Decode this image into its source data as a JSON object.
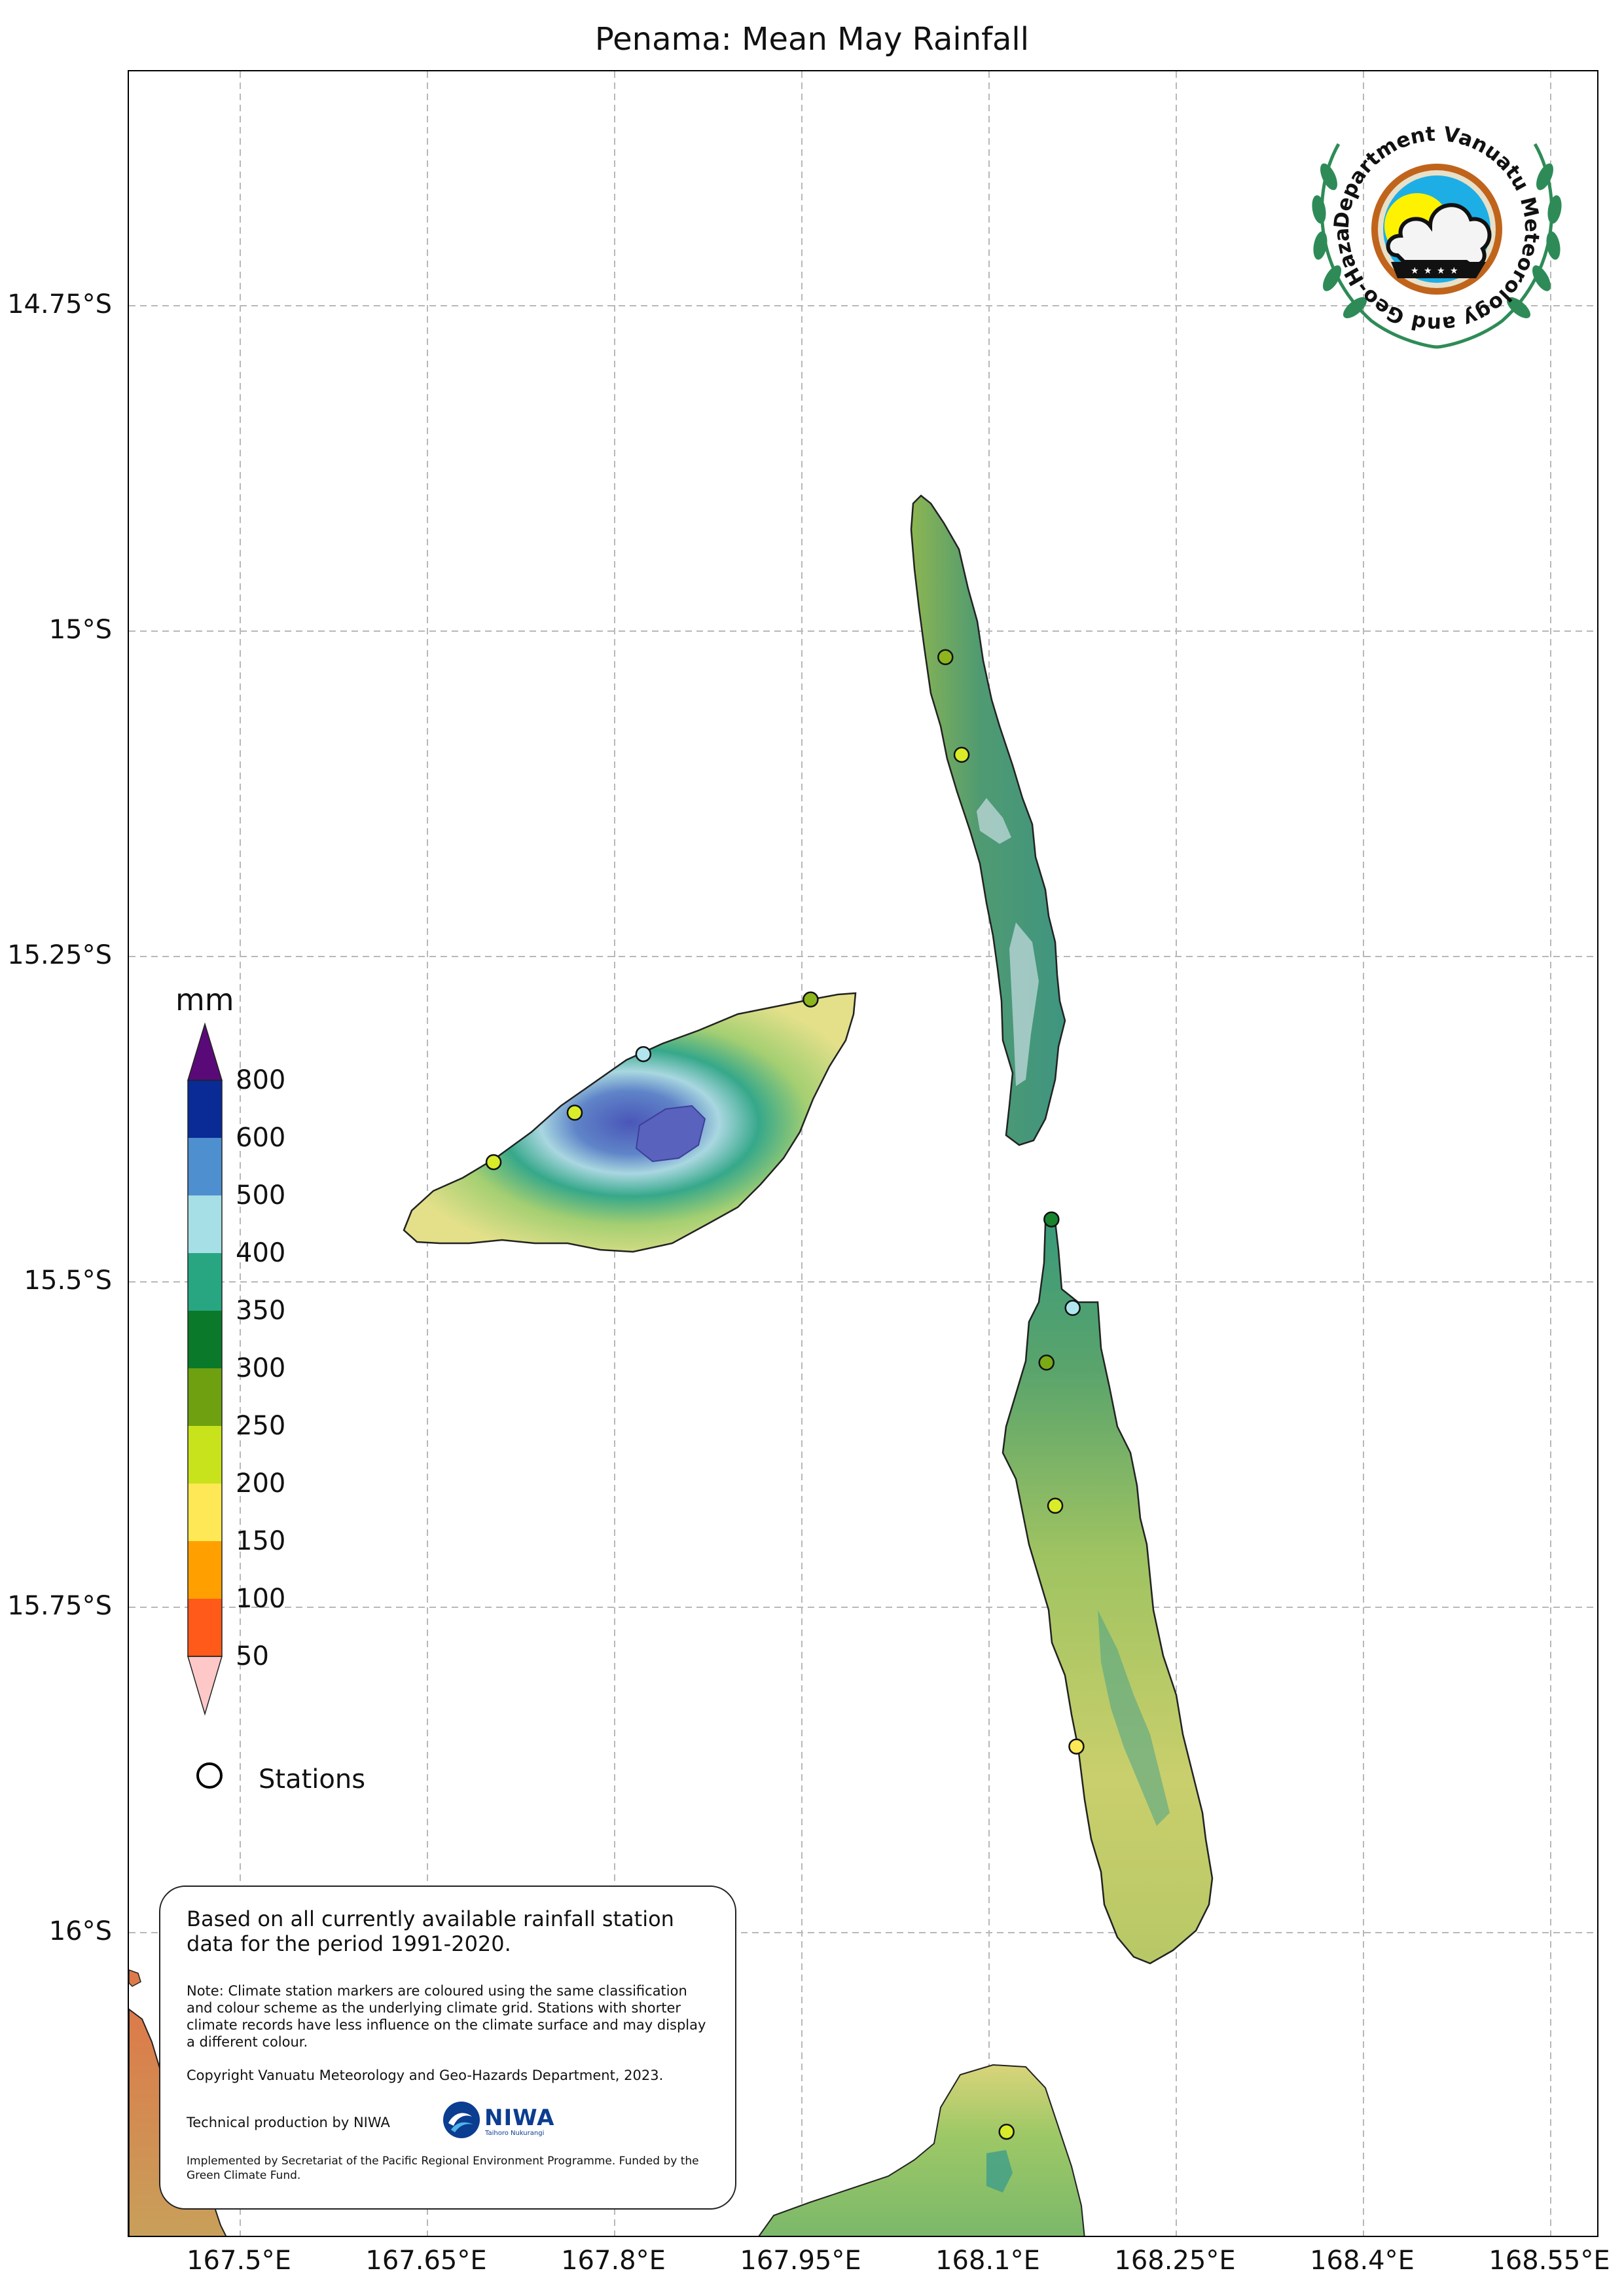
{
  "map": {
    "title": "Penama: Mean May Rainfall",
    "lat_ticks": [
      {
        "label": "14.75°S",
        "lat": -14.75
      },
      {
        "label": "15°S",
        "lat": -15.0
      },
      {
        "label": "15.25°S",
        "lat": -15.25
      },
      {
        "label": "15.5°S",
        "lat": -15.5
      },
      {
        "label": "15.75°S",
        "lat": -15.75
      },
      {
        "label": "16°S",
        "lat": -16.0
      }
    ],
    "lon_ticks": [
      {
        "label": "167.5°E",
        "lon": 167.5
      },
      {
        "label": "167.65°E",
        "lon": 167.65
      },
      {
        "label": "167.8°E",
        "lon": 167.8
      },
      {
        "label": "167.95°E",
        "lon": 167.95
      },
      {
        "label": "168.1°E",
        "lon": 168.1
      },
      {
        "label": "168.25°E",
        "lon": 168.25
      },
      {
        "label": "168.4°E",
        "lon": 168.4
      },
      {
        "label": "168.55°E",
        "lon": 168.55
      }
    ],
    "gridlines": true
  },
  "legend": {
    "unit": "mm",
    "colorbar": [
      {
        "label": "50",
        "color": "#ff5a1a"
      },
      {
        "label": "100",
        "color": "#ffa000"
      },
      {
        "label": "150",
        "color": "#ffe855"
      },
      {
        "label": "200",
        "color": "#c8e21c"
      },
      {
        "label": "250",
        "color": "#6ea010"
      },
      {
        "label": "300",
        "color": "#0a7a2a"
      },
      {
        "label": "350",
        "color": "#28a682"
      },
      {
        "label": "400",
        "color": "#a6dfe6"
      },
      {
        "label": "500",
        "color": "#4e8fcf"
      },
      {
        "label": "600",
        "color": "#0a2a96"
      },
      {
        "label": "800",
        "color": "#5a0a78"
      }
    ],
    "under_color": "#ffc8c8",
    "over_color": "#5a0a78",
    "stations_label": "Stations"
  },
  "stations": [
    {
      "lon": 168.065,
      "lat": -15.02,
      "color": "#8db51e"
    },
    {
      "lon": 168.078,
      "lat": -15.095,
      "color": "#d8ec2a"
    },
    {
      "lon": 167.957,
      "lat": -15.283,
      "color": "#8db51e"
    },
    {
      "lon": 167.823,
      "lat": -15.325,
      "color": "#b2e6ef"
    },
    {
      "lon": 167.768,
      "lat": -15.37,
      "color": "#d8ec2a"
    },
    {
      "lon": 167.703,
      "lat": -15.408,
      "color": "#d8ec2a"
    },
    {
      "lon": 168.15,
      "lat": -15.452,
      "color": "#18842e"
    },
    {
      "lon": 168.167,
      "lat": -15.52,
      "color": "#b2e6ef"
    },
    {
      "lon": 168.146,
      "lat": -15.562,
      "color": "#7aaa16"
    },
    {
      "lon": 168.153,
      "lat": -15.672,
      "color": "#d8ec2a"
    },
    {
      "lon": 168.17,
      "lat": -15.857,
      "color": "#ffe855"
    },
    {
      "lon": 168.114,
      "lat": -16.153,
      "color": "#d8ec2a"
    }
  ],
  "info": {
    "main": "Based on all currently available rainfall station data for the period 1991-2020.",
    "note": "Note: Climate station markers are coloured using the same classification and colour scheme as the underlying climate grid. Stations with shorter climate records have less influence on the climate surface and may display a different colour.",
    "copyright": "Copyright Vanuatu Meteorology and Geo-Hazards Department, 2023.",
    "technical": "Technical production by NIWA",
    "implemented": "Implemented by Secretariat of the Pacific Regional Environment Programme. Funded by the Green Climate Fund.",
    "niwa_logo_text": "NIWA",
    "niwa_logo_sub": "Taihoro Nukurangi"
  },
  "logo": {
    "text": "Department Vanuatu Meteorology and Geo-Hazards"
  }
}
